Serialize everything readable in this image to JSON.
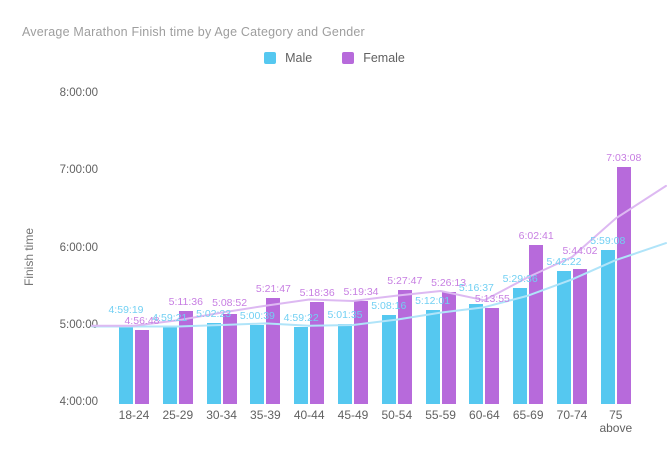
{
  "chart_data": {
    "type": "bar",
    "title": "Average Marathon Finish time by Age Category and Gender",
    "ylabel": "Finish time",
    "xlabel": "",
    "grid": false,
    "legend_position": "top",
    "y_ticks": [
      "8:00:00",
      "7:00:00",
      "6:00:00",
      "5:00:00",
      "4:00:00"
    ],
    "ylim_hours": [
      4,
      8
    ],
    "categories": [
      "18-24",
      "25-29",
      "30-34",
      "35-39",
      "40-44",
      "45-49",
      "50-54",
      "55-59",
      "60-64",
      "65-69",
      "70-74",
      "75\nabove"
    ],
    "series": [
      {
        "name": "Male",
        "color": "#55C8F0",
        "label_color": "#72D0F3",
        "values": [
          "4:59:19",
          "4:59:21",
          "5:02:23",
          "5:00:39",
          "4:59:22",
          "5:01:35",
          "5:08:16",
          "5:12:01",
          "5:16:37",
          "5:29:36",
          "5:42:22",
          "5:59:08"
        ]
      },
      {
        "name": "Female",
        "color": "#B76ADB",
        "label_color": "#C77EE2",
        "values": [
          "4:56:48",
          "5:11:36",
          "5:08:52",
          "5:21:47",
          "5:18:36",
          "5:19:34",
          "5:27:47",
          "5:26:13",
          "5:13:55",
          "6:02:41",
          "5:44:02",
          "7:03:08"
        ]
      }
    ],
    "trendlines": [
      {
        "series": "Male",
        "color": "#B0E4F9",
        "values_hours": [
          4.99,
          4.99,
          4.99,
          5.01,
          5.03,
          5.0,
          5.01,
          5.08,
          5.17,
          5.24,
          5.39,
          5.6,
          5.85,
          6.07
        ]
      },
      {
        "series": "Female",
        "color": "#DDB9F2",
        "values_hours": [
          5.0,
          5.0,
          5.07,
          5.17,
          5.26,
          5.34,
          5.32,
          5.39,
          5.45,
          5.33,
          5.63,
          5.89,
          6.39,
          6.81
        ]
      }
    ],
    "colors": {
      "title_text": "#9E9E9E",
      "axis_text": "#616161",
      "background": "#FFFFFF"
    }
  }
}
